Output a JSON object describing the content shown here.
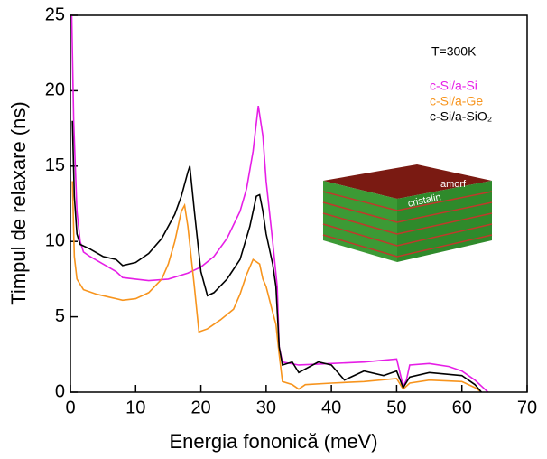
{
  "chart_data": {
    "type": "line",
    "x_label": "Energia fononică (meV)",
    "y_label": "Timpul de relaxare (ns)",
    "annotations": [
      "T=300K",
      "amorf",
      "cristalin"
    ],
    "xlim": [
      0,
      70
    ],
    "xticks": [
      0,
      10,
      20,
      30,
      40,
      50,
      60,
      70
    ],
    "ylim": [
      0,
      25
    ],
    "yticks": [
      0,
      5,
      10,
      15,
      20,
      25
    ],
    "series": [
      {
        "name": "c-Si/a-Si",
        "color": "#e61ee6",
        "x": [
          0.2,
          0.5,
          1,
          1.5,
          2,
          3,
          5,
          7,
          8,
          10,
          12,
          15,
          18,
          20,
          22,
          24,
          26,
          27,
          28,
          28.8,
          29.5,
          30,
          31,
          31.7,
          32,
          32.5,
          35,
          40,
          45,
          50,
          50.5,
          51,
          51.5,
          52,
          55,
          58,
          60,
          62,
          63,
          64
        ],
        "values": [
          25,
          18,
          12,
          10,
          9.3,
          9.0,
          8.5,
          8.0,
          7.6,
          7.5,
          7.4,
          7.5,
          7.9,
          8.3,
          9.0,
          10.2,
          12,
          13.5,
          16,
          19,
          17,
          14,
          10,
          7,
          3,
          2,
          1.8,
          1.9,
          2.0,
          2.2,
          1.3,
          0.4,
          0.8,
          1.8,
          1.9,
          1.7,
          1.4,
          0.8,
          0.4,
          0
        ]
      },
      {
        "name": "c-Si/a-Ge",
        "color": "#f7941d",
        "x": [
          0.3,
          0.6,
          1,
          2,
          4,
          6,
          8,
          10,
          12,
          14,
          15,
          16,
          17,
          17.5,
          18,
          19,
          19.7,
          21,
          23,
          25,
          26,
          27,
          28,
          29,
          29.5,
          30,
          31,
          31.5,
          32,
          32.5,
          34,
          35,
          36,
          40,
          45,
          50,
          51,
          52,
          55,
          60,
          62,
          63
        ],
        "values": [
          14,
          9,
          7.5,
          6.8,
          6.5,
          6.3,
          6.1,
          6.2,
          6.6,
          7.5,
          8.5,
          10,
          12,
          12.4,
          11,
          7,
          4,
          4.2,
          4.8,
          5.5,
          6.5,
          7.8,
          8.8,
          8.5,
          7.5,
          7,
          5.3,
          4.5,
          2.5,
          0.7,
          0.5,
          0.2,
          0.5,
          0.6,
          0.7,
          0.9,
          0.2,
          0.6,
          0.8,
          0.7,
          0.3,
          0
        ]
      },
      {
        "name": "c-Si/a-SiO₂",
        "color": "#000000",
        "x": [
          0.3,
          0.6,
          1,
          1.5,
          3,
          5,
          7,
          8,
          10,
          12,
          14,
          16,
          17,
          18,
          18.3,
          19,
          20,
          21,
          22,
          24,
          26,
          27.5,
          28.5,
          29,
          29.5,
          30,
          31,
          31.5,
          32,
          32.5,
          34,
          35,
          38,
          40,
          42,
          45,
          48,
          50,
          51,
          52,
          55,
          60,
          62,
          63
        ],
        "values": [
          18,
          13,
          10.5,
          9.8,
          9.5,
          9.0,
          8.8,
          8.4,
          8.6,
          9.2,
          10.2,
          11.8,
          13,
          14.6,
          15,
          12,
          8,
          6.4,
          6.6,
          7.5,
          8.8,
          11,
          13,
          13.1,
          12,
          10.5,
          8.5,
          7,
          3,
          1.8,
          2,
          1.3,
          2.0,
          1.8,
          0.8,
          1.4,
          1.1,
          1.4,
          0.3,
          1.0,
          1.3,
          1.1,
          0.5,
          0
        ]
      }
    ]
  }
}
